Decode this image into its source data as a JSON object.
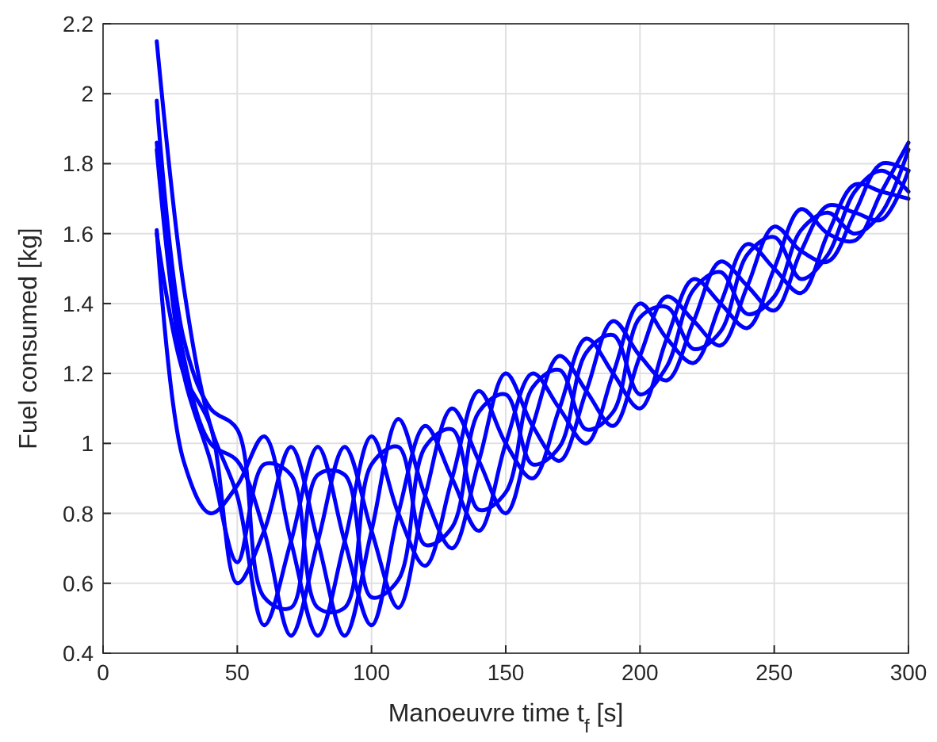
{
  "chart_data": {
    "type": "line",
    "xlabel": "Manoeuvre time t$_{f}$ [s]",
    "ylabel": "Fuel consumed [kg]",
    "x": [
      20,
      30,
      40,
      50,
      60,
      70,
      80,
      90,
      100,
      110,
      120,
      130,
      140,
      150,
      160,
      170,
      180,
      190,
      200,
      210,
      220,
      230,
      240,
      250,
      260,
      270,
      280,
      290,
      300
    ],
    "xlim": [
      0,
      300
    ],
    "xticks": [
      0,
      50,
      100,
      150,
      200,
      250,
      300
    ],
    "ylim": [
      0.4,
      2.2
    ],
    "yticks": [
      0.4,
      0.6,
      0.8,
      1,
      1.2,
      1.4,
      1.6,
      1.8,
      2,
      2.2
    ],
    "grid": true,
    "line_style": "solid",
    "marker": "none",
    "series": [
      {
        "color": "#0000ff",
        "values": [
          2.15,
          1.45,
          1.05,
          0.85,
          0.48,
          0.72,
          0.99,
          0.72,
          0.48,
          0.8,
          1.05,
          0.9,
          0.75,
          1.0,
          1.2,
          1.1,
          1.0,
          1.2,
          1.4,
          1.3,
          1.23,
          1.4,
          1.57,
          1.5,
          1.43,
          1.6,
          1.74,
          1.72,
          1.7
        ]
      },
      {
        "color": "#0000ff",
        "values": [
          1.61,
          0.95,
          0.8,
          0.88,
          1.02,
          0.72,
          0.45,
          0.72,
          1.02,
          0.8,
          0.65,
          0.9,
          1.15,
          1.0,
          0.9,
          1.1,
          1.3,
          1.2,
          1.1,
          1.3,
          1.47,
          1.4,
          1.33,
          1.5,
          1.67,
          1.6,
          1.58,
          1.72,
          1.86
        ]
      },
      {
        "color": "#0000ff",
        "values": [
          1.86,
          1.25,
          1.0,
          0.95,
          0.75,
          0.45,
          0.72,
          0.99,
          0.75,
          0.53,
          0.85,
          1.1,
          0.95,
          0.8,
          1.05,
          1.25,
          1.15,
          1.05,
          1.25,
          1.42,
          1.35,
          1.28,
          1.45,
          1.62,
          1.55,
          1.52,
          1.66,
          1.8,
          1.78
        ]
      },
      {
        "color": "#0000ff",
        "values": [
          1.6,
          1.2,
          1.05,
          0.6,
          0.75,
          0.99,
          0.72,
          0.45,
          0.75,
          1.07,
          0.85,
          0.7,
          0.95,
          1.2,
          1.05,
          0.95,
          1.15,
          1.35,
          1.25,
          1.18,
          1.35,
          1.52,
          1.45,
          1.38,
          1.55,
          1.68,
          1.66,
          1.64,
          1.78
        ]
      },
      {
        "color": "#0000ff",
        "values": [
          1.98,
          1.3,
          1.1,
          1.04,
          0.56,
          0.53,
          0.91,
          0.91,
          0.56,
          0.61,
          0.99,
          1.04,
          0.81,
          0.86,
          1.16,
          1.21,
          1.04,
          1.09,
          1.36,
          1.39,
          1.27,
          1.32,
          1.54,
          1.59,
          1.47,
          1.54,
          1.72,
          1.78,
          1.72
        ]
      },
      {
        "color": "#0000ff",
        "values": [
          1.84,
          1.2,
          0.95,
          0.66,
          0.94,
          0.91,
          0.53,
          0.53,
          0.94,
          0.99,
          0.71,
          0.76,
          1.09,
          1.14,
          0.94,
          0.99,
          1.26,
          1.31,
          1.14,
          1.22,
          1.44,
          1.49,
          1.37,
          1.42,
          1.61,
          1.66,
          1.6,
          1.66,
          1.84
        ]
      }
    ]
  }
}
